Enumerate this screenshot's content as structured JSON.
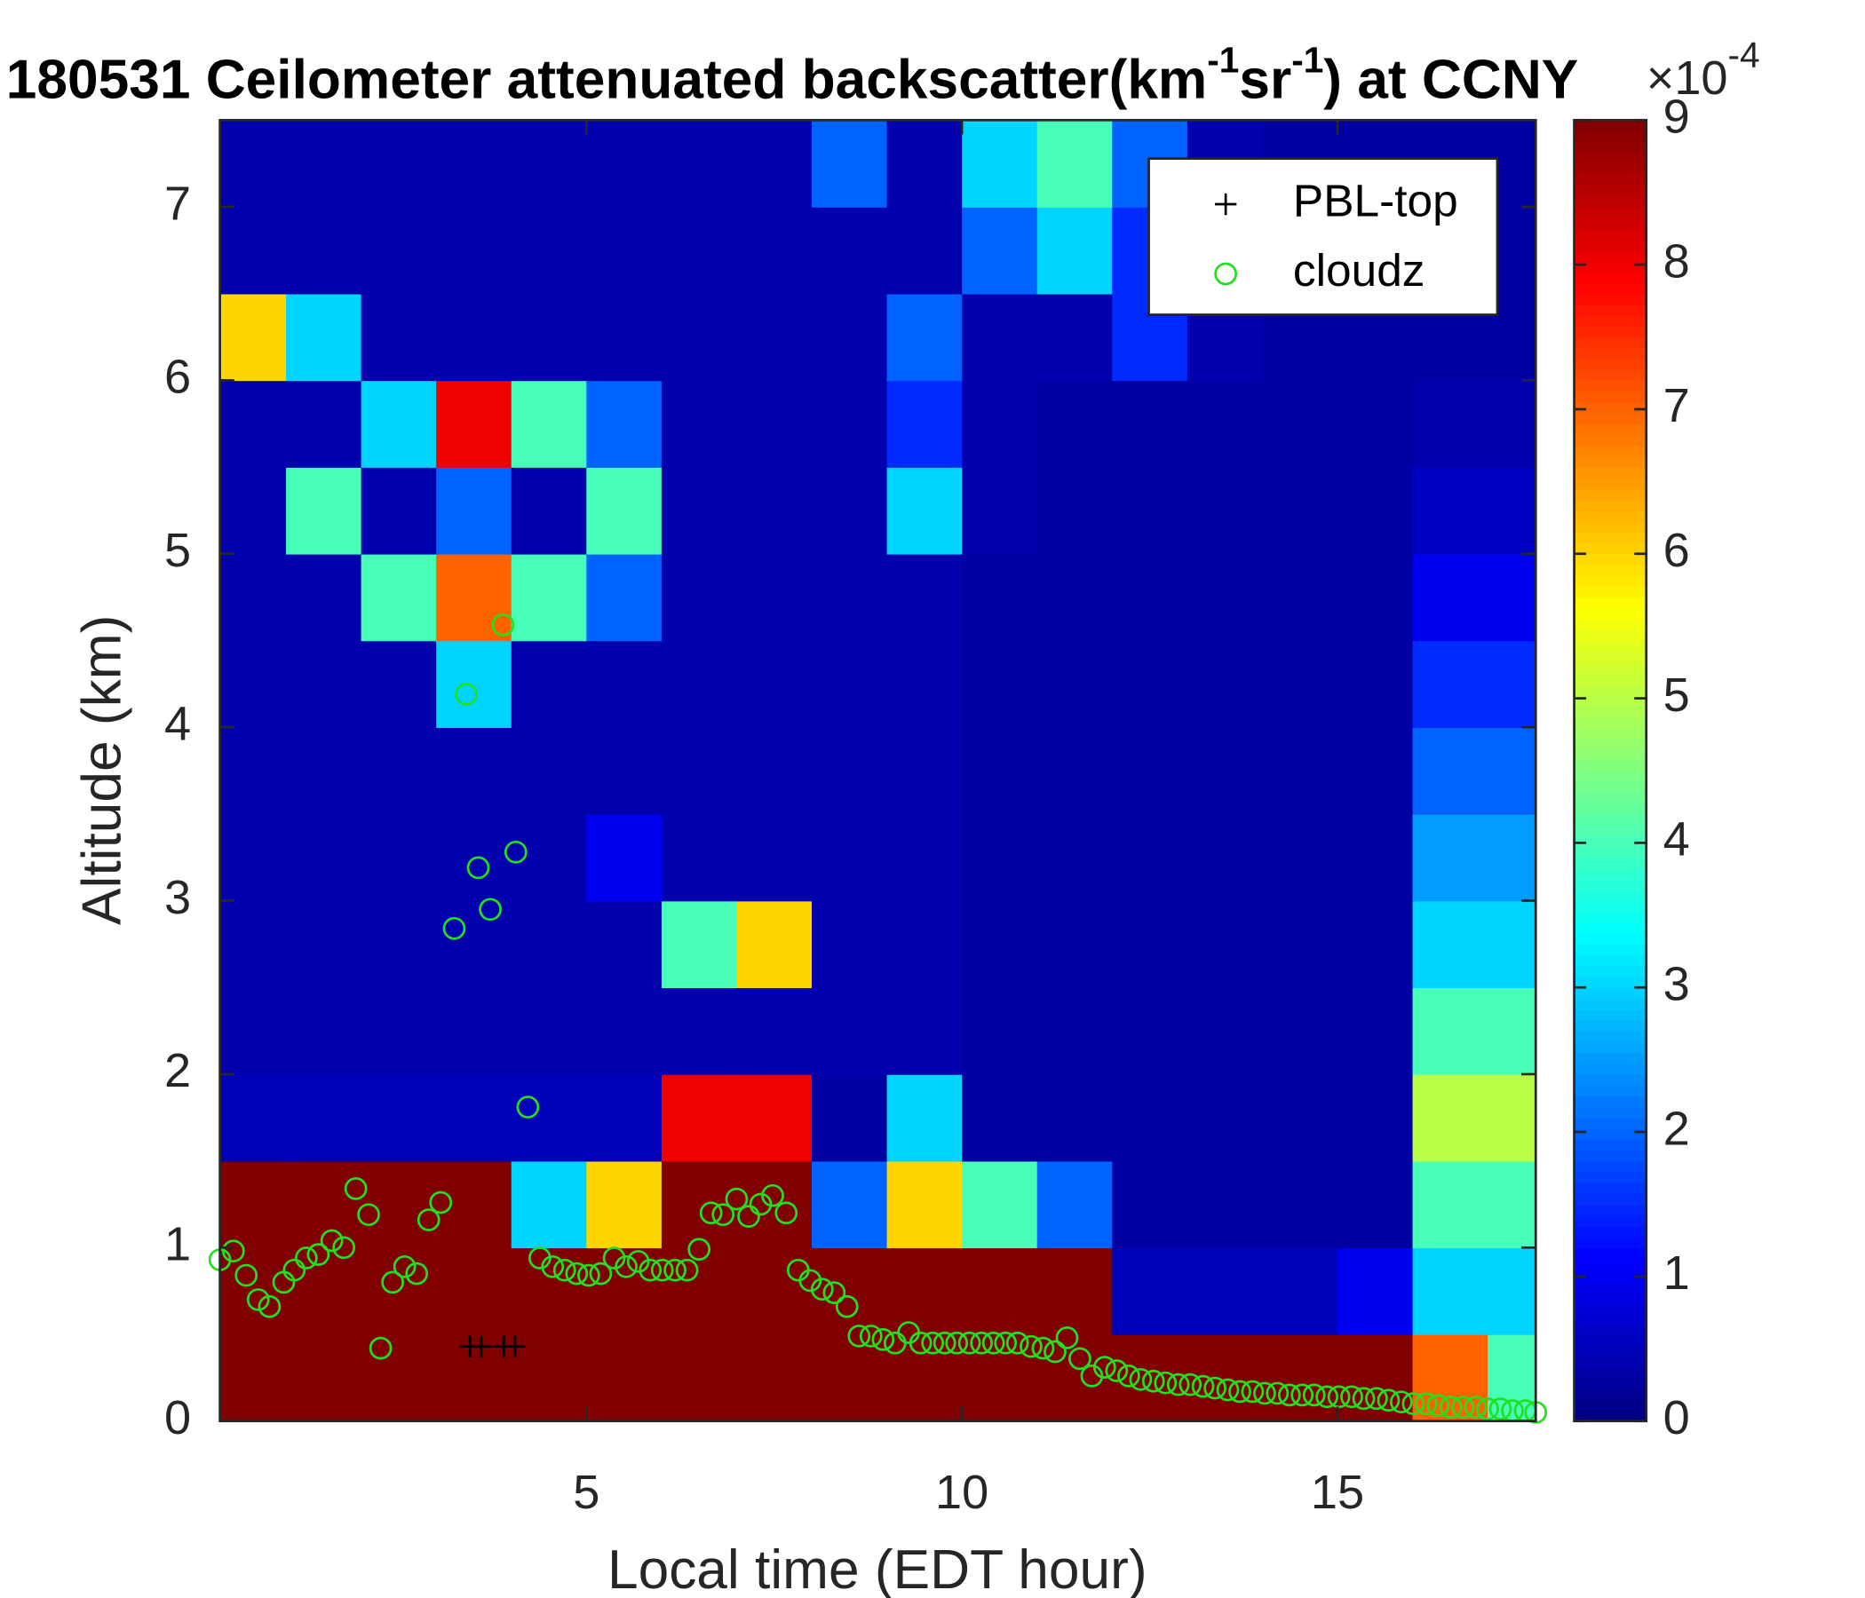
{
  "chart_data": {
    "type": "heatmap",
    "title_parts": [
      "180531 Ceilometer attenuated backscatter(km",
      "-1",
      "sr",
      "-1",
      ") at CCNY"
    ],
    "xlabel": "Local time (EDT hour)",
    "ylabel": "Altitude (km)",
    "xlim": [
      0.12,
      17.64
    ],
    "ylim": [
      0,
      7.5
    ],
    "xticks": [
      5,
      10,
      15
    ],
    "yticks": [
      0,
      1,
      2,
      3,
      4,
      5,
      6,
      7
    ],
    "colormap": "jet",
    "clim": [
      0,
      9
    ],
    "cticks": [
      0,
      1,
      2,
      3,
      4,
      5,
      6,
      7,
      8,
      9
    ],
    "colorbar_exponent": {
      "base": "×10",
      "power": "-4"
    },
    "x_edges": [
      0,
      1,
      2,
      3,
      4,
      5,
      6,
      7,
      8,
      9,
      10,
      11,
      12,
      13,
      14,
      15,
      16,
      17,
      18
    ],
    "y_edges": [
      0,
      0.5,
      1,
      1.5,
      2,
      2.5,
      3,
      3.5,
      4,
      4.5,
      5,
      5.5,
      6,
      6.5,
      7,
      7.5
    ],
    "z": [
      [
        9,
        9,
        9,
        9,
        9,
        9,
        9,
        9,
        9,
        9,
        9,
        9,
        9,
        9,
        9,
        9,
        7,
        4
      ],
      [
        9,
        9,
        9,
        9,
        9,
        9,
        9,
        9,
        9,
        9,
        9,
        9,
        0.5,
        0.5,
        0.5,
        1,
        3,
        3
      ],
      [
        9,
        9,
        9,
        9,
        3,
        6,
        9,
        9,
        2,
        6,
        4,
        2,
        0.3,
        0.3,
        0.3,
        0.3,
        4,
        4
      ],
      [
        0.5,
        0.5,
        0.5,
        0.5,
        0.5,
        0.5,
        8,
        8,
        0.3,
        3,
        0.3,
        0.3,
        0.3,
        0.3,
        0.3,
        0.3,
        5,
        5
      ],
      [
        0.4,
        0.4,
        0.4,
        0.4,
        0.4,
        0.4,
        0.4,
        0.4,
        0.4,
        0.4,
        0.3,
        0.3,
        0.3,
        0.3,
        0.3,
        0.3,
        4,
        4
      ],
      [
        0.4,
        0.4,
        0.4,
        0.4,
        0.4,
        0.4,
        4,
        6,
        0.4,
        0.4,
        0.3,
        0.3,
        0.3,
        0.3,
        0.3,
        0.3,
        3,
        3
      ],
      [
        0.4,
        0.4,
        0.4,
        0.4,
        0.4,
        1,
        0.4,
        0.4,
        0.4,
        0.4,
        0.3,
        0.3,
        0.3,
        0.3,
        0.3,
        0.3,
        2.5,
        2.5
      ],
      [
        0.4,
        0.4,
        0.4,
        0.4,
        0.4,
        0.4,
        0.4,
        0.4,
        0.4,
        0.4,
        0.3,
        0.3,
        0.3,
        0.3,
        0.3,
        0.3,
        2,
        2
      ],
      [
        0.4,
        0.4,
        0.4,
        3,
        0.4,
        0.4,
        0.4,
        0.4,
        0.4,
        0.4,
        0.3,
        0.3,
        0.3,
        0.3,
        0.3,
        0.3,
        1.5,
        1.5
      ],
      [
        0.4,
        0.4,
        4,
        7,
        4,
        2,
        0.4,
        0.4,
        0.4,
        0.4,
        0.3,
        0.3,
        0.3,
        0.3,
        0.3,
        0.3,
        1,
        1
      ],
      [
        0.4,
        4,
        0.4,
        2,
        0.4,
        4,
        0.4,
        0.4,
        0.4,
        3,
        0.4,
        0.3,
        0.3,
        0.3,
        0.3,
        0.3,
        0.6,
        0.6
      ],
      [
        0.4,
        0.4,
        3,
        8,
        4,
        2,
        0.4,
        0.4,
        0.4,
        1.5,
        0.4,
        0.3,
        0.3,
        0.3,
        0.3,
        0.3,
        0.4,
        0.4
      ],
      [
        6,
        3,
        0.4,
        0.4,
        0.4,
        0.4,
        0.4,
        0.4,
        0.4,
        2,
        0.4,
        0.4,
        1.5,
        0.4,
        0.3,
        0.3,
        0.3,
        0.3
      ],
      [
        0.4,
        0.4,
        0.4,
        0.4,
        0.4,
        0.4,
        0.4,
        0.4,
        0.4,
        0.4,
        2,
        3,
        1.5,
        0.4,
        0.3,
        0.3,
        0.3,
        0.3
      ],
      [
        0.4,
        0.4,
        0.4,
        0.4,
        0.4,
        0.4,
        0.4,
        0.4,
        2,
        0.4,
        3,
        4,
        2,
        0.4,
        0.3,
        0.3,
        0.3,
        0.3
      ]
    ],
    "legend": "northeast",
    "series": [
      {
        "name": "PBL-top",
        "type": "scatter",
        "marker": "plus",
        "color": "#000000",
        "x": [
          3.45,
          3.6,
          3.9,
          4.05
        ],
        "values": [
          0.43,
          0.43,
          0.43,
          0.43
        ]
      },
      {
        "name": "cloudz",
        "type": "scatter",
        "marker": "circle",
        "color": "#22e01f",
        "x": [
          0.12,
          0.3,
          0.47,
          0.63,
          0.78,
          0.97,
          1.11,
          1.27,
          1.43,
          1.61,
          1.77,
          1.93,
          2.1,
          2.26,
          2.42,
          2.58,
          2.74,
          2.9,
          3.06,
          3.24,
          3.4,
          3.56,
          3.72,
          3.89,
          4.06,
          4.22,
          4.38,
          4.55,
          4.71,
          4.87,
          5.03,
          5.19,
          5.37,
          5.53,
          5.69,
          5.85,
          6.01,
          6.18,
          6.34,
          6.5,
          6.66,
          6.82,
          7.0,
          7.16,
          7.32,
          7.48,
          7.66,
          7.82,
          7.98,
          8.14,
          8.3,
          8.47,
          8.63,
          8.79,
          8.95,
          9.11,
          9.29,
          9.45,
          9.61,
          9.77,
          9.93,
          10.1,
          10.26,
          10.42,
          10.58,
          10.74,
          10.92,
          11.08,
          11.24,
          11.4,
          11.57,
          11.73,
          11.9,
          12.06,
          12.22,
          12.38,
          12.55,
          12.71,
          12.88,
          13.04,
          13.21,
          13.37,
          13.54,
          13.7,
          13.87,
          14.03,
          14.2,
          14.36,
          14.53,
          14.69,
          14.86,
          15.02,
          15.19,
          15.35,
          15.52,
          15.68,
          15.85,
          16.01,
          16.18,
          16.34,
          16.51,
          16.67,
          16.84,
          17.0,
          17.17,
          17.33,
          17.5,
          17.64
        ],
        "values": [
          0.93,
          0.98,
          0.84,
          0.7,
          0.66,
          0.8,
          0.87,
          0.94,
          0.96,
          1.04,
          1.0,
          1.34,
          1.19,
          0.42,
          0.8,
          0.89,
          0.85,
          1.16,
          1.26,
          2.84,
          4.19,
          3.19,
          2.95,
          4.59,
          3.28,
          1.81,
          0.94,
          0.89,
          0.87,
          0.85,
          0.84,
          0.85,
          0.94,
          0.89,
          0.92,
          0.87,
          0.87,
          0.87,
          0.87,
          0.99,
          1.2,
          1.19,
          1.28,
          1.18,
          1.25,
          1.3,
          1.2,
          0.87,
          0.81,
          0.76,
          0.74,
          0.66,
          0.49,
          0.49,
          0.47,
          0.45,
          0.51,
          0.45,
          0.45,
          0.45,
          0.45,
          0.45,
          0.45,
          0.45,
          0.45,
          0.45,
          0.43,
          0.42,
          0.4,
          0.48,
          0.36,
          0.26,
          0.31,
          0.29,
          0.26,
          0.24,
          0.23,
          0.22,
          0.21,
          0.21,
          0.2,
          0.19,
          0.18,
          0.17,
          0.17,
          0.16,
          0.16,
          0.15,
          0.15,
          0.15,
          0.14,
          0.14,
          0.14,
          0.13,
          0.13,
          0.12,
          0.11,
          0.1,
          0.1,
          0.09,
          0.08,
          0.08,
          0.08,
          0.07,
          0.07,
          0.06,
          0.06,
          0.05
        ]
      }
    ]
  }
}
